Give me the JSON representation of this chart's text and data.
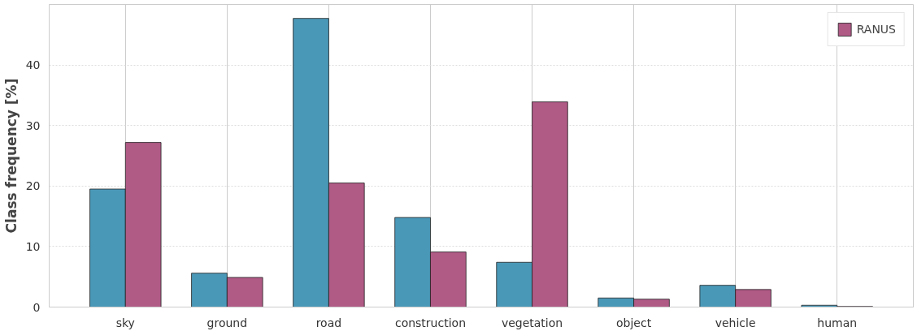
{
  "chart_data": {
    "type": "bar",
    "ylabel": "Class frequency [%]",
    "categories": [
      "sky",
      "ground",
      "road",
      "construction",
      "vegetation",
      "object",
      "vehicle",
      "human"
    ],
    "series": [
      {
        "color": "#4a98b8",
        "values": [
          19.5,
          5.6,
          47.7,
          14.8,
          7.4,
          1.5,
          3.6,
          0.3
        ]
      },
      {
        "name": "RANUS",
        "color": "#b05a86",
        "values": [
          27.2,
          4.9,
          20.5,
          9.1,
          33.9,
          1.3,
          2.9,
          0.1
        ]
      }
    ],
    "ylim": [
      0,
      50
    ],
    "yticks": [
      0,
      10,
      20,
      30,
      40
    ],
    "grid": true,
    "legend": "top right"
  }
}
